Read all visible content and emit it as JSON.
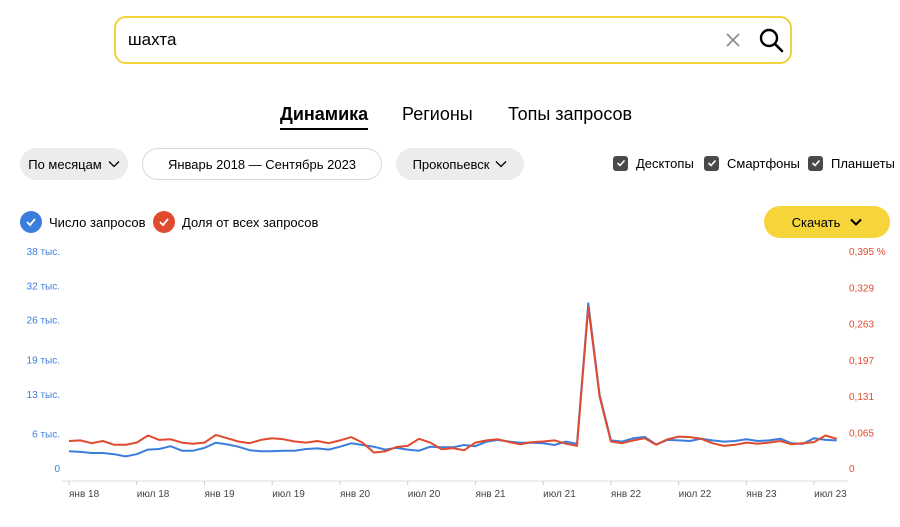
{
  "search": {
    "value": "шахта"
  },
  "tabs": [
    {
      "label": "Динамика",
      "active": true
    },
    {
      "label": "Регионы",
      "active": false
    },
    {
      "label": "Топы запросов",
      "active": false
    }
  ],
  "filters": {
    "period_group": "По месяцам",
    "date_range": "Январь 2018 — Сентябрь 2023",
    "region": "Прокопьевск"
  },
  "devices": [
    {
      "label": "Десктопы",
      "checked": true
    },
    {
      "label": "Смартфоны",
      "checked": true
    },
    {
      "label": "Планшеты",
      "checked": true
    }
  ],
  "legend": {
    "count_label": "Число запросов",
    "share_label": "Доля от всех запросов"
  },
  "download_label": "Скачать",
  "colors": {
    "blue": "#3b7ddd",
    "red": "#e04a2f",
    "accent": "#f6d53b"
  },
  "chart_data": {
    "type": "line",
    "y_left_ticks": [
      "38 тыс.",
      "32 тыс.",
      "26 тыс.",
      "19 тыс.",
      "13 тыс.",
      "6 тыс.",
      "0"
    ],
    "y_left_values": [
      38000,
      32000,
      26000,
      19000,
      13000,
      6000,
      0
    ],
    "y_right_ticks": [
      "0,395 %",
      "0,329",
      "0,263",
      "0,197",
      "0,131",
      "0,065",
      "0"
    ],
    "y_right_values": [
      0.395,
      0.329,
      0.263,
      0.197,
      0.131,
      0.065,
      0
    ],
    "x_ticks": [
      "янв 18",
      "июл 18",
      "янв 19",
      "июл 19",
      "янв 20",
      "июл 20",
      "янв 21",
      "июл 21",
      "янв 22",
      "июл 22",
      "янв 23",
      "июл 23"
    ],
    "x_tick_months": [
      0,
      6,
      12,
      18,
      24,
      30,
      36,
      42,
      48,
      54,
      60,
      66
    ],
    "series": [
      {
        "name": "Число запросов",
        "axis": "left",
        "values": [
          3100,
          3000,
          2800,
          2800,
          2600,
          2200,
          2600,
          3400,
          3500,
          4000,
          3200,
          3200,
          3700,
          4600,
          4300,
          3900,
          3300,
          3100,
          3100,
          3200,
          3200,
          3500,
          3600,
          3400,
          3900,
          4500,
          4200,
          3900,
          3400,
          3700,
          3400,
          3200,
          3900,
          3800,
          3800,
          4200,
          4000,
          4800,
          5100,
          4800,
          4600,
          4600,
          4500,
          4200,
          4800,
          4400,
          29000,
          13000,
          5000,
          4800,
          5400,
          5600,
          4300,
          5100,
          5000,
          4900,
          5300,
          5000,
          4800,
          4900,
          5200,
          4900,
          5000,
          5300,
          4500,
          4400,
          5400,
          5100,
          5000
        ]
      },
      {
        "name": "Доля от всех запросов",
        "axis": "right",
        "values": [
          0.051,
          0.052,
          0.047,
          0.051,
          0.044,
          0.044,
          0.048,
          0.061,
          0.053,
          0.054,
          0.048,
          0.046,
          0.048,
          0.062,
          0.056,
          0.05,
          0.047,
          0.053,
          0.056,
          0.054,
          0.05,
          0.048,
          0.051,
          0.047,
          0.052,
          0.058,
          0.048,
          0.03,
          0.032,
          0.04,
          0.042,
          0.055,
          0.048,
          0.036,
          0.038,
          0.034,
          0.048,
          0.052,
          0.054,
          0.049,
          0.045,
          0.049,
          0.05,
          0.052,
          0.046,
          0.042,
          0.295,
          0.132,
          0.05,
          0.047,
          0.052,
          0.056,
          0.044,
          0.054,
          0.059,
          0.058,
          0.055,
          0.047,
          0.042,
          0.044,
          0.048,
          0.046,
          0.048,
          0.051,
          0.045,
          0.047,
          0.049,
          0.061,
          0.055
        ]
      }
    ]
  }
}
